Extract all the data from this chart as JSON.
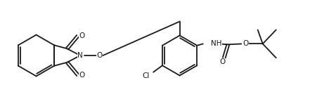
{
  "figsize": [
    4.78,
    1.58
  ],
  "dpi": 100,
  "bg_color": "#ffffff",
  "line_color": "#1a1a1a",
  "line_width": 1.3,
  "text_color": "#1a1a1a",
  "font_size": 7.5,
  "xlim": [
    0,
    10
  ],
  "ylim": [
    0,
    3.3
  ]
}
